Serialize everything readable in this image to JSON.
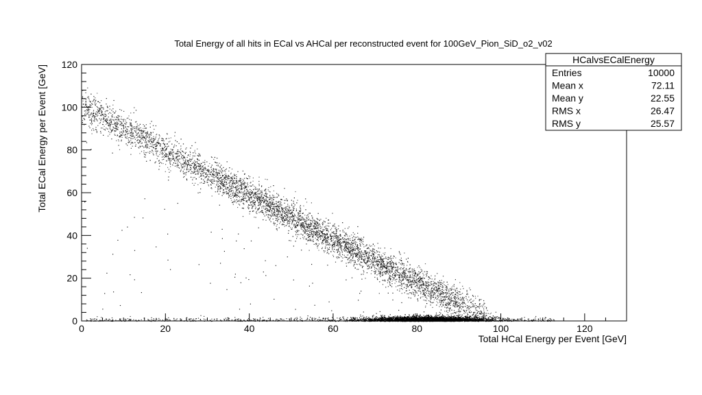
{
  "chart_data": {
    "type": "scatter",
    "title": "Total Energy of all hits in ECal vs AHCal per reconstructed event for 100GeV_Pion_SiD_o2_v02",
    "xlabel": "Total HCal Energy per Event [GeV]",
    "ylabel": "Total ECal Energy per Event [GeV]",
    "xlim": [
      0,
      130
    ],
    "ylim": [
      0,
      120
    ],
    "x_ticks": [
      0,
      20,
      40,
      60,
      80,
      100,
      120
    ],
    "y_ticks": [
      0,
      20,
      40,
      60,
      80,
      100,
      120
    ],
    "grid": false,
    "legend": "none",
    "marker_color": "#000000",
    "trend_points": [
      {
        "x": 0,
        "y": 101
      },
      {
        "x": 20,
        "y": 80
      },
      {
        "x": 40,
        "y": 59
      },
      {
        "x": 60,
        "y": 38
      },
      {
        "x": 80,
        "y": 18
      },
      {
        "x": 96,
        "y": 3
      }
    ],
    "dense_band": {
      "x_range": [
        85,
        105
      ],
      "y": 0.5
    },
    "stats_box": {
      "name": "HCalvsECalEnergy",
      "placement": "top-right",
      "rows": [
        {
          "label": "Entries",
          "value": "10000"
        },
        {
          "label": "Mean x",
          "value": "72.11"
        },
        {
          "label": "Mean y",
          "value": "22.55"
        },
        {
          "label": "RMS x",
          "value": "26.47"
        },
        {
          "label": "RMS y",
          "value": "25.57"
        }
      ]
    }
  }
}
